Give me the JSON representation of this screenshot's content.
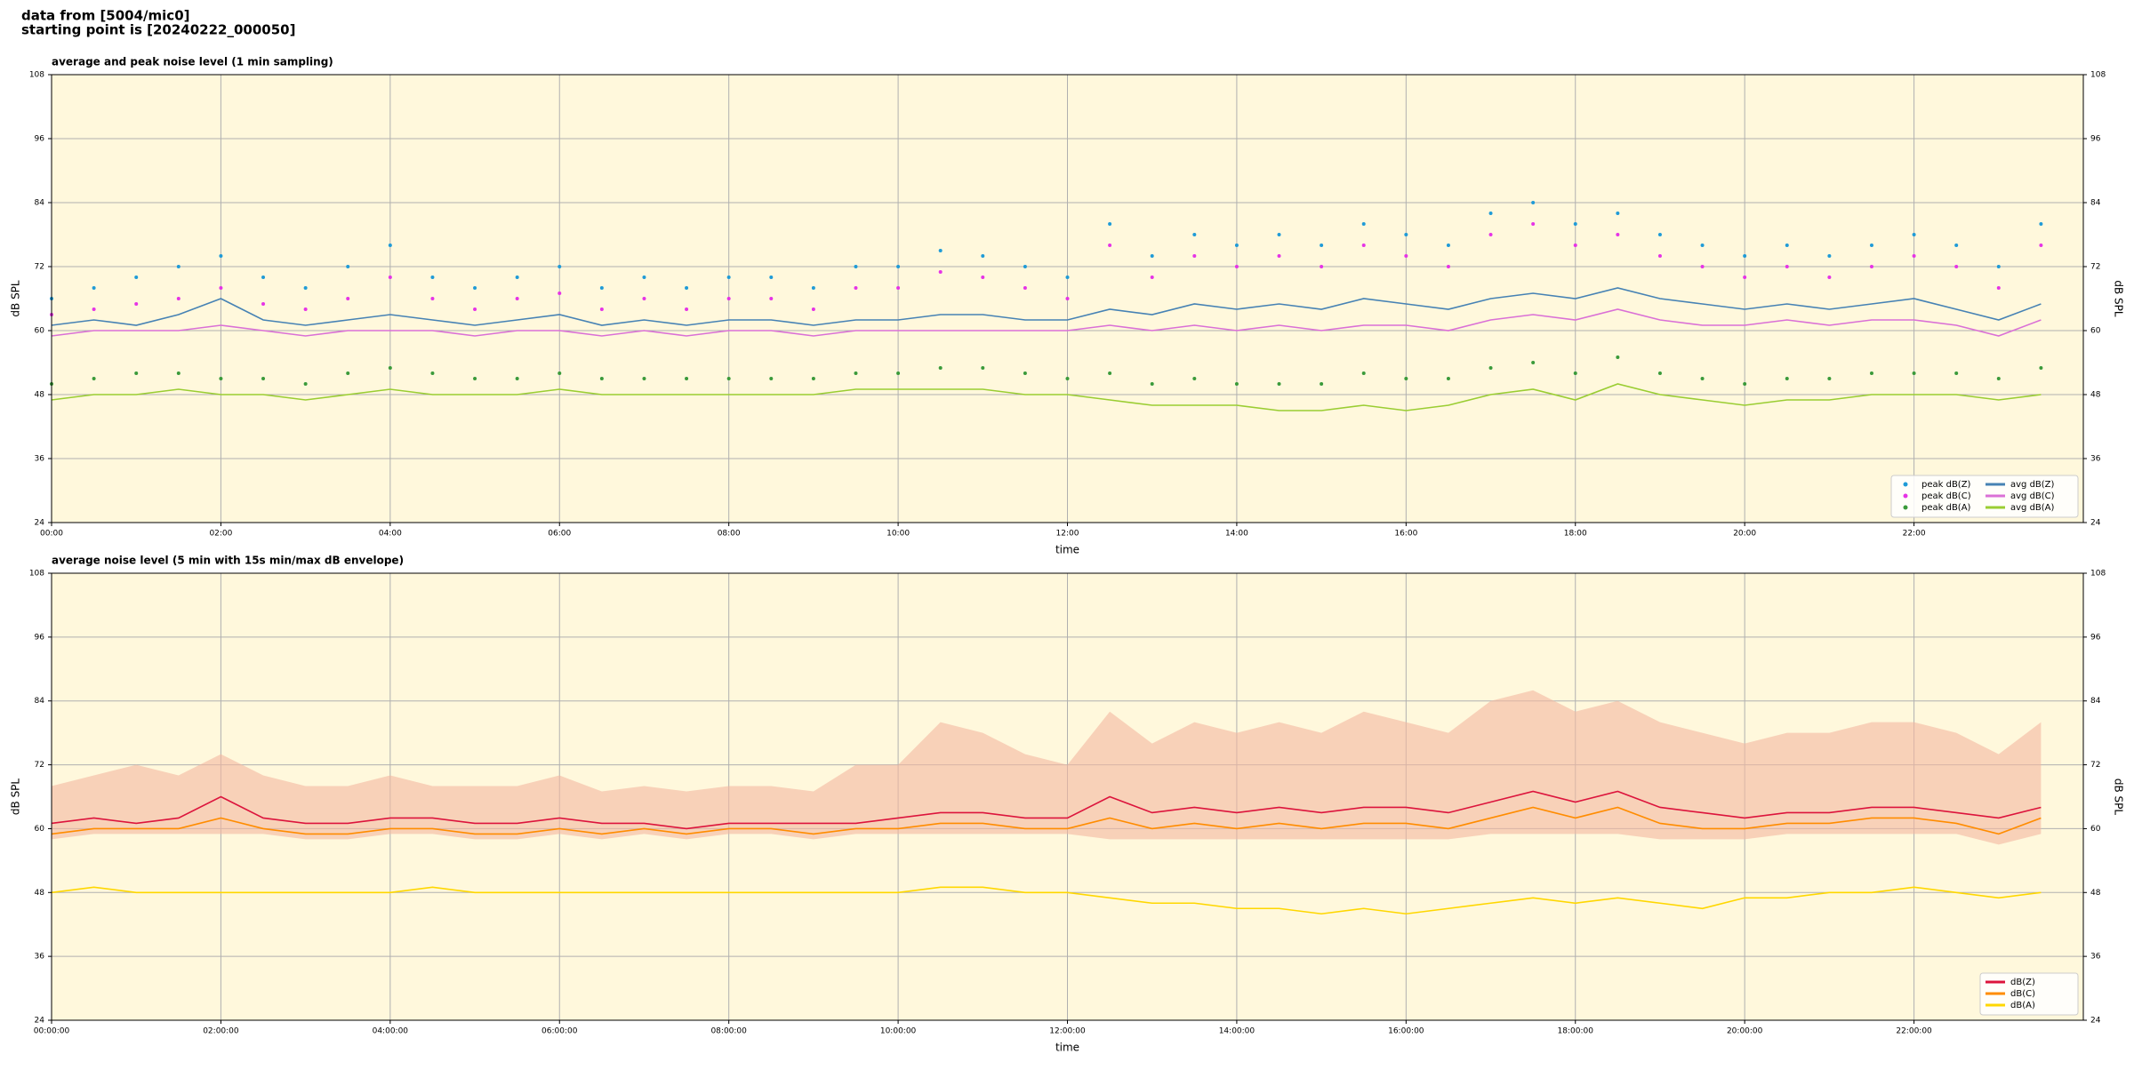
{
  "header": {
    "lines": [
      "data from [5004/mic0]",
      "starting point is [20240222_000050]"
    ]
  },
  "chart_data": [
    {
      "type": "line",
      "title": "average and peak noise level (1 min sampling)",
      "xlabel": "time",
      "ylabel": "dB SPL",
      "ylim": [
        24,
        108
      ],
      "yticks": [
        24,
        36,
        48,
        60,
        72,
        84,
        96,
        108
      ],
      "xlim": [
        "00:00",
        "24:00"
      ],
      "xticks": [
        "00:00",
        "02:00",
        "04:00",
        "06:00",
        "08:00",
        "10:00",
        "12:00",
        "14:00",
        "16:00",
        "18:00",
        "20:00",
        "22:00"
      ],
      "grid": true,
      "background": "#fff8dc",
      "legend": "lower right",
      "x": [
        "00:00",
        "00:30",
        "01:00",
        "01:30",
        "02:00",
        "02:30",
        "03:00",
        "03:30",
        "04:00",
        "04:30",
        "05:00",
        "05:30",
        "06:00",
        "06:30",
        "07:00",
        "07:30",
        "08:00",
        "08:30",
        "09:00",
        "09:30",
        "10:00",
        "10:30",
        "11:00",
        "11:30",
        "12:00",
        "12:30",
        "13:00",
        "13:30",
        "14:00",
        "14:30",
        "15:00",
        "15:30",
        "16:00",
        "16:30",
        "17:00",
        "17:30",
        "18:00",
        "18:30",
        "19:00",
        "19:30",
        "20:00",
        "20:30",
        "21:00",
        "21:30",
        "22:00",
        "22:30",
        "23:00",
        "23:30"
      ],
      "series": [
        {
          "name": "peak dB(Z)",
          "type": "scatter",
          "color": "#1f9bd7",
          "values": [
            66,
            68,
            70,
            72,
            74,
            70,
            68,
            72,
            76,
            70,
            68,
            70,
            72,
            68,
            70,
            68,
            70,
            70,
            68,
            72,
            72,
            75,
            74,
            72,
            70,
            80,
            74,
            78,
            76,
            78,
            76,
            80,
            78,
            76,
            82,
            84,
            80,
            82,
            78,
            76,
            74,
            76,
            74,
            76,
            78,
            76,
            72,
            80
          ]
        },
        {
          "name": "peak dB(C)",
          "type": "scatter",
          "color": "#e633e6",
          "values": [
            63,
            64,
            65,
            66,
            68,
            65,
            64,
            66,
            70,
            66,
            64,
            66,
            67,
            64,
            66,
            64,
            66,
            66,
            64,
            68,
            68,
            71,
            70,
            68,
            66,
            76,
            70,
            74,
            72,
            74,
            72,
            76,
            74,
            72,
            78,
            80,
            76,
            78,
            74,
            72,
            70,
            72,
            70,
            72,
            74,
            72,
            68,
            76
          ]
        },
        {
          "name": "peak dB(A)",
          "type": "scatter",
          "color": "#3a9a3a",
          "values": [
            50,
            51,
            52,
            52,
            51,
            51,
            50,
            52,
            53,
            52,
            51,
            51,
            52,
            51,
            51,
            51,
            51,
            51,
            51,
            52,
            52,
            53,
            53,
            52,
            51,
            52,
            50,
            51,
            50,
            50,
            50,
            52,
            51,
            51,
            53,
            54,
            52,
            55,
            52,
            51,
            50,
            51,
            51,
            52,
            52,
            52,
            51,
            53
          ]
        },
        {
          "name": "avg dB(Z)",
          "type": "line",
          "color": "#4682b4",
          "values": [
            61,
            62,
            61,
            63,
            66,
            62,
            61,
            62,
            63,
            62,
            61,
            62,
            63,
            61,
            62,
            61,
            62,
            62,
            61,
            62,
            62,
            63,
            63,
            62,
            62,
            64,
            63,
            65,
            64,
            65,
            64,
            66,
            65,
            64,
            66,
            67,
            66,
            68,
            66,
            65,
            64,
            65,
            64,
            65,
            66,
            64,
            62,
            65
          ]
        },
        {
          "name": "avg dB(C)",
          "type": "line",
          "color": "#da70d6",
          "values": [
            59,
            60,
            60,
            60,
            61,
            60,
            59,
            60,
            60,
            60,
            59,
            60,
            60,
            59,
            60,
            59,
            60,
            60,
            59,
            60,
            60,
            60,
            60,
            60,
            60,
            61,
            60,
            61,
            60,
            61,
            60,
            61,
            61,
            60,
            62,
            63,
            62,
            64,
            62,
            61,
            61,
            62,
            61,
            62,
            62,
            61,
            59,
            62
          ]
        },
        {
          "name": "avg dB(A)",
          "type": "line",
          "color": "#9acd32",
          "values": [
            47,
            48,
            48,
            49,
            48,
            48,
            47,
            48,
            49,
            48,
            48,
            48,
            49,
            48,
            48,
            48,
            48,
            48,
            48,
            49,
            49,
            49,
            49,
            48,
            48,
            47,
            46,
            46,
            46,
            45,
            45,
            46,
            45,
            46,
            48,
            49,
            47,
            50,
            48,
            47,
            46,
            47,
            47,
            48,
            48,
            48,
            47,
            48
          ]
        }
      ]
    },
    {
      "type": "line",
      "title": "average noise level (5 min with 15s min/max dB envelope)",
      "xlabel": "time",
      "ylabel": "dB SPL",
      "ylim": [
        24,
        108
      ],
      "yticks": [
        24,
        36,
        48,
        60,
        72,
        84,
        96,
        108
      ],
      "xlim": [
        "00:00:00",
        "24:00:00"
      ],
      "xticks": [
        "00:00:00",
        "02:00:00",
        "04:00:00",
        "06:00:00",
        "08:00:00",
        "10:00:00",
        "12:00:00",
        "14:00:00",
        "16:00:00",
        "18:00:00",
        "20:00:00",
        "22:00:00"
      ],
      "grid": true,
      "background": "#fff8dc",
      "legend": "lower right",
      "x": [
        "00:00:00",
        "00:30:00",
        "01:00:00",
        "01:30:00",
        "02:00:00",
        "02:30:00",
        "03:00:00",
        "03:30:00",
        "04:00:00",
        "04:30:00",
        "05:00:00",
        "05:30:00",
        "06:00:00",
        "06:30:00",
        "07:00:00",
        "07:30:00",
        "08:00:00",
        "08:30:00",
        "09:00:00",
        "09:30:00",
        "10:00:00",
        "10:30:00",
        "11:00:00",
        "11:30:00",
        "12:00:00",
        "12:30:00",
        "13:00:00",
        "13:30:00",
        "14:00:00",
        "14:30:00",
        "15:00:00",
        "15:30:00",
        "16:00:00",
        "16:30:00",
        "17:00:00",
        "17:30:00",
        "18:00:00",
        "18:30:00",
        "19:00:00",
        "19:30:00",
        "20:00:00",
        "20:30:00",
        "21:00:00",
        "21:30:00",
        "22:00:00",
        "22:30:00",
        "23:00:00",
        "23:30:00"
      ],
      "envelope": {
        "color": "#f4b8a0",
        "max": [
          68,
          70,
          72,
          70,
          74,
          70,
          68,
          68,
          70,
          68,
          68,
          68,
          70,
          67,
          68,
          67,
          68,
          68,
          67,
          72,
          72,
          80,
          78,
          74,
          72,
          82,
          76,
          80,
          78,
          80,
          78,
          82,
          80,
          78,
          84,
          86,
          82,
          84,
          80,
          78,
          76,
          78,
          78,
          80,
          80,
          78,
          74,
          80
        ],
        "min": [
          58,
          59,
          59,
          59,
          59,
          59,
          58,
          58,
          59,
          59,
          58,
          58,
          59,
          58,
          59,
          58,
          59,
          59,
          58,
          59,
          59,
          59,
          59,
          59,
          59,
          58,
          58,
          58,
          58,
          58,
          58,
          58,
          58,
          58,
          59,
          59,
          59,
          59,
          58,
          58,
          58,
          59,
          59,
          59,
          59,
          59,
          57,
          59
        ]
      },
      "series": [
        {
          "name": "dB(Z)",
          "type": "line",
          "color": "#dc143c",
          "values": [
            61,
            62,
            61,
            62,
            66,
            62,
            61,
            61,
            62,
            62,
            61,
            61,
            62,
            61,
            61,
            60,
            61,
            61,
            61,
            61,
            62,
            63,
            63,
            62,
            62,
            66,
            63,
            64,
            63,
            64,
            63,
            64,
            64,
            63,
            65,
            67,
            65,
            67,
            64,
            63,
            62,
            63,
            63,
            64,
            64,
            63,
            62,
            64
          ]
        },
        {
          "name": "dB(C)",
          "type": "line",
          "color": "#ff8c00",
          "values": [
            59,
            60,
            60,
            60,
            62,
            60,
            59,
            59,
            60,
            60,
            59,
            59,
            60,
            59,
            60,
            59,
            60,
            60,
            59,
            60,
            60,
            61,
            61,
            60,
            60,
            62,
            60,
            61,
            60,
            61,
            60,
            61,
            61,
            60,
            62,
            64,
            62,
            64,
            61,
            60,
            60,
            61,
            61,
            62,
            62,
            61,
            59,
            62
          ]
        },
        {
          "name": "dB(A)",
          "type": "line",
          "color": "#ffd700",
          "values": [
            48,
            49,
            48,
            48,
            48,
            48,
            48,
            48,
            48,
            49,
            48,
            48,
            48,
            48,
            48,
            48,
            48,
            48,
            48,
            48,
            48,
            49,
            49,
            48,
            48,
            47,
            46,
            46,
            45,
            45,
            44,
            45,
            44,
            45,
            46,
            47,
            46,
            47,
            46,
            45,
            47,
            47,
            48,
            48,
            49,
            48,
            47,
            48
          ]
        }
      ]
    }
  ]
}
